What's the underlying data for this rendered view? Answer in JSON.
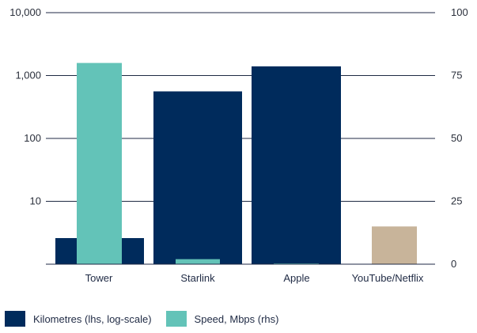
{
  "chart_data": {
    "type": "bar",
    "categories": [
      "Tower",
      "Starlink",
      "Apple",
      "YouTube/Netflix"
    ],
    "series": [
      {
        "name": "Kilometres (lhs, log-scale)",
        "axis": "left",
        "scale": "log",
        "values": [
          2.6,
          560,
          1400,
          null
        ],
        "color": "#002b5c"
      },
      {
        "name": "Speed, Mbps (rhs)",
        "axis": "right",
        "scale": "linear",
        "values": [
          80,
          2,
          0.2,
          null
        ],
        "color": "#63c3b8"
      },
      {
        "name": "",
        "axis": "right",
        "scale": "linear",
        "values": [
          null,
          null,
          null,
          15
        ],
        "color": "#c8b49a"
      }
    ],
    "left_axis": {
      "scale": "log",
      "range": [
        1,
        10000
      ],
      "ticks": [
        10,
        100,
        1000,
        10000
      ],
      "tick_labels": [
        "10",
        "100",
        "1,000",
        "10,000"
      ]
    },
    "right_axis": {
      "scale": "linear",
      "range": [
        0,
        100
      ],
      "ticks": [
        0,
        25,
        50,
        75,
        100
      ],
      "tick_labels": [
        "0",
        "25",
        "50",
        "75",
        "100"
      ]
    },
    "grid": true,
    "legend_position": "bottom-left"
  },
  "legend": {
    "items": [
      {
        "label": "Kilometres (lhs, log-scale)",
        "color": "#002b5c"
      },
      {
        "label": "Speed, Mbps (rhs)",
        "color": "#63c3b8"
      }
    ]
  }
}
